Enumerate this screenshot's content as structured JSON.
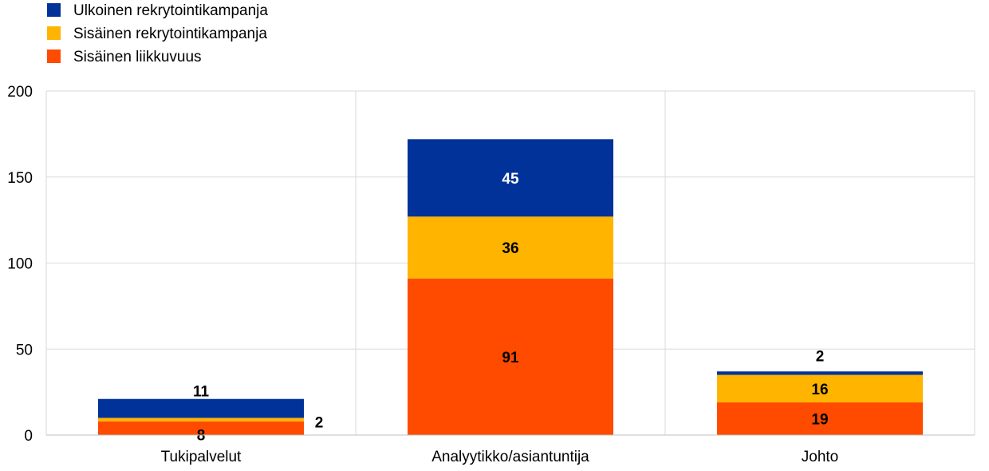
{
  "chart_data": {
    "type": "bar",
    "stacked": true,
    "categories": [
      "Tukipalvelut",
      "Analyytikko/asiantuntija",
      "Johto"
    ],
    "series": [
      {
        "name": "Sisäinen liikkuvuus",
        "color": "#FF4B00",
        "values": [
          8,
          91,
          19
        ],
        "label_color": "#000000"
      },
      {
        "name": "Sisäinen rekrytointikampanja",
        "color": "#FFB400",
        "values": [
          2,
          36,
          16
        ],
        "label_color": "#000000"
      },
      {
        "name": "Ulkoinen rekrytointikampanja",
        "color": "#003299",
        "values": [
          11,
          45,
          2
        ],
        "label_color": "#FFFFFF"
      }
    ],
    "legend_order": [
      "Ulkoinen rekrytointikampanja",
      "Sisäinen rekrytointikampanja",
      "Sisäinen liikkuvuus"
    ],
    "legend_position": "top-left",
    "yticks": [
      0,
      50,
      100,
      150,
      200
    ],
    "ylim": [
      0,
      200
    ],
    "grid": true,
    "title": "",
    "xlabel": "",
    "ylabel": ""
  }
}
